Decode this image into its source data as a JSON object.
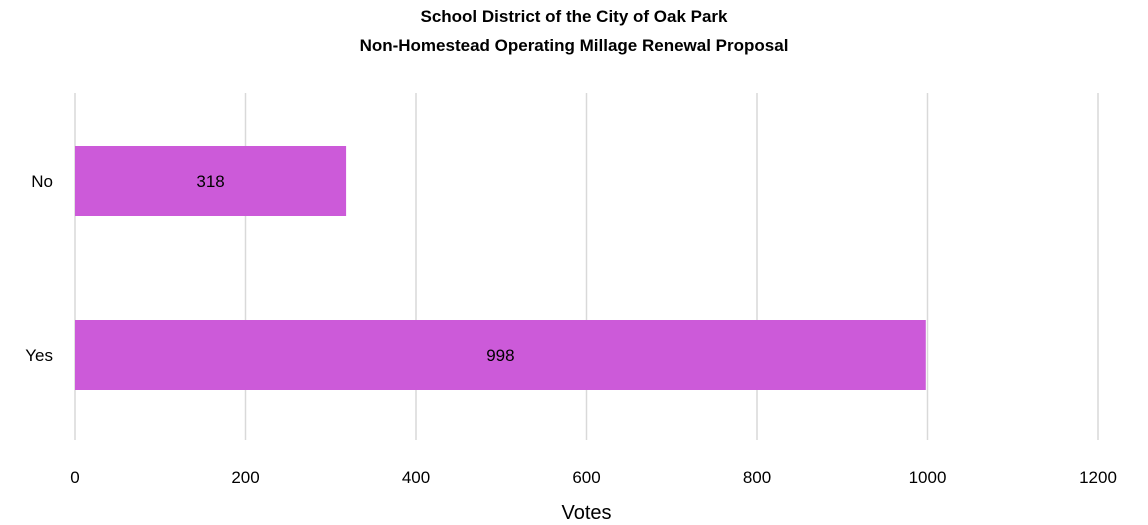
{
  "chart_data": {
    "type": "bar",
    "orientation": "horizontal",
    "title": "School District of the City of Oak Park",
    "subtitle": "Non-Homestead Operating Millage Renewal Proposal",
    "categories": [
      "No",
      "Yes"
    ],
    "values": [
      318,
      998
    ],
    "data_labels": [
      "318",
      "998"
    ],
    "xlabel": "Votes",
    "ylabel": "",
    "xlim": [
      0,
      1200
    ],
    "x_ticks": [
      0,
      200,
      400,
      600,
      800,
      1000,
      1200
    ],
    "x_tick_labels": [
      "0",
      "200",
      "400",
      "600",
      "800",
      "1000",
      "1200"
    ],
    "grid": "vertical",
    "legend": "none",
    "bar_color": "#cc5ad9",
    "grid_color": "#d9d9d9"
  }
}
